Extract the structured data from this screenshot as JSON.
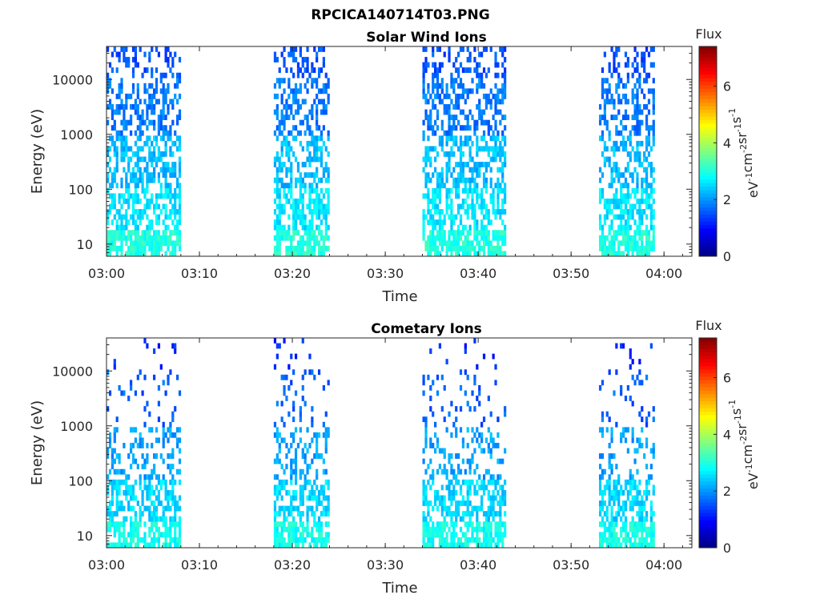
{
  "figure": {
    "title": "RPCICA140714T03.PNG"
  },
  "chart_data": [
    {
      "type": "heatmap",
      "title": "Solar Wind Ions",
      "xlabel": "Time",
      "ylabel": "Energy (eV)",
      "yscale": "log",
      "ylim": [
        6,
        40000
      ],
      "xlim": [
        "03:00",
        "04:03"
      ],
      "x_tick_labels": [
        "03:00",
        "03:10",
        "03:20",
        "03:30",
        "03:40",
        "03:50",
        "04:00"
      ],
      "y_tick_labels": [
        "10",
        "100",
        "1000",
        "10000"
      ],
      "colorbar": {
        "label": "Flux",
        "unit_base": "eV",
        "unit_parts": [
          {
            "base": "eV",
            "exp": "-1"
          },
          {
            "base": "cm",
            "exp": "-2"
          },
          {
            "base": "sr",
            "exp": "-1"
          },
          {
            "base": "s",
            "exp": "-1"
          }
        ],
        "range": [
          0,
          7.4
        ],
        "tick_labels": [
          "0",
          "2",
          "4",
          "6"
        ]
      },
      "data_intervals": [
        {
          "start": "03:00",
          "end": "03:08"
        },
        {
          "start": "03:18",
          "end": "03:24"
        },
        {
          "start": "03:34",
          "end": "03:43"
        },
        {
          "start": "03:53",
          "end": "03:59"
        }
      ],
      "typical_levels": {
        "above_10keV": 1.5,
        "1keV_10keV": 1.8,
        "100eV_1keV": 2.3,
        "10eV_100eV": 2.6,
        "below_20eV": 3.0
      }
    },
    {
      "type": "heatmap",
      "title": "Cometary Ions",
      "xlabel": "Time",
      "ylabel": "Energy (eV)",
      "yscale": "log",
      "ylim": [
        6,
        40000
      ],
      "xlim": [
        "03:00",
        "04:03"
      ],
      "x_tick_labels": [
        "03:00",
        "03:10",
        "03:20",
        "03:30",
        "03:40",
        "03:50",
        "04:00"
      ],
      "y_tick_labels": [
        "10",
        "100",
        "1000",
        "10000"
      ],
      "colorbar": {
        "label": "Flux",
        "unit_parts": [
          {
            "base": "eV",
            "exp": "-1"
          },
          {
            "base": "cm",
            "exp": "-2"
          },
          {
            "base": "sr",
            "exp": "-1"
          },
          {
            "base": "s",
            "exp": "-1"
          }
        ],
        "range": [
          0,
          7.4
        ],
        "tick_labels": [
          "0",
          "2",
          "4",
          "6"
        ]
      },
      "data_intervals": [
        {
          "start": "03:00",
          "end": "03:08"
        },
        {
          "start": "03:18",
          "end": "03:24"
        },
        {
          "start": "03:34",
          "end": "03:43"
        },
        {
          "start": "03:53",
          "end": "03:59"
        }
      ],
      "typical_levels": {
        "above_10keV": 1.2,
        "1keV_10keV": 1.6,
        "100eV_1keV": 2.1,
        "10eV_100eV": 2.5,
        "below_20eV": 2.9
      }
    }
  ]
}
